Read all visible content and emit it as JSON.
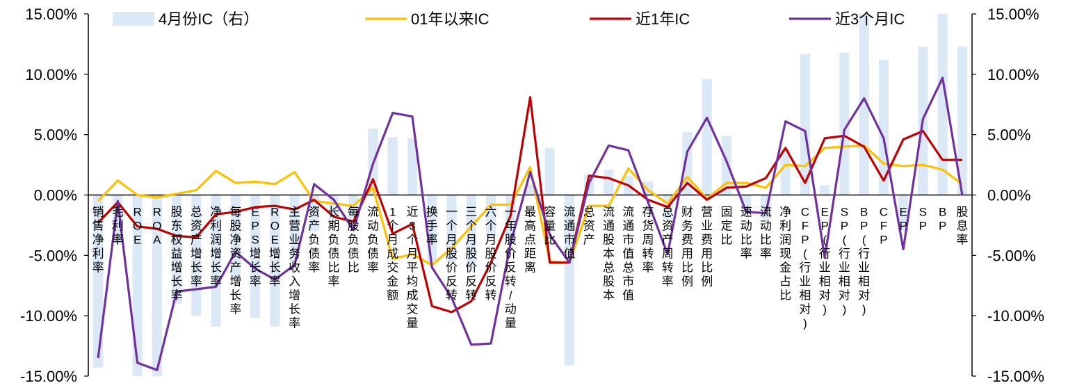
{
  "chart_data": {
    "type": "bar+line",
    "title": "",
    "xlabel": "",
    "ylabel_left": "",
    "ylabel_right": "",
    "ylim_left": [
      -15,
      15
    ],
    "ylim_right": [
      -15,
      15
    ],
    "y_ticks": [
      "15.00%",
      "10.00%",
      "5.00%",
      "0.00%",
      "-5.00%",
      "-10.00%",
      "-15.00%"
    ],
    "y_tick_values": [
      15,
      10,
      5,
      0,
      -5,
      -10,
      -15
    ],
    "legend": [
      {
        "name": "4月份IC（右）",
        "kind": "bar",
        "color": "#dbe8f5"
      },
      {
        "name": "01年以来IC",
        "kind": "line",
        "color": "#ffc000"
      },
      {
        "name": "近1年IC",
        "kind": "line",
        "color": "#c00000"
      },
      {
        "name": "近3个月IC",
        "kind": "line",
        "color": "#7030a0"
      }
    ],
    "legend_position": "top",
    "categories": [
      "销售净利率",
      "毛利率",
      "ROE",
      "ROA",
      "股东权益增长率",
      "总资产增长率",
      "净利润增长率",
      "每股净资产增长率",
      "EPS增长率",
      "ROE增长率",
      "主营业务收入增长率",
      "资产负债率",
      "长期负债比率",
      "每股负债比",
      "流动负债率",
      "1个月成交金额",
      "近3个月平均成交量",
      "换手率",
      "一个月股价反转",
      "三个月股价反转",
      "六个月股价反转",
      "一年股价反转/动量",
      "最高点距离",
      "容量比",
      "流通市值",
      "总资产",
      "流通股本总股本",
      "流通市值总市值",
      "存货周转率",
      "总资产周转率",
      "财务费用比例",
      "营业费用比例",
      "固定比",
      "速动比率",
      "流动比率",
      "净利润现金占比",
      "CFP(行业相对)",
      "EP(行业相对)",
      "SP(行业相对)",
      "BP(行业相对)",
      "CFP",
      "EP",
      "SP",
      "BP",
      "股息率"
    ],
    "series": [
      {
        "name": "4月份IC（右）",
        "kind": "bar",
        "color": "#dbe8f5",
        "axis": "right",
        "values": [
          -14.3,
          -4.0,
          -15.0,
          -15.0,
          -9.0,
          -10.0,
          -10.9,
          -7.0,
          -10.2,
          -10.9,
          -5.5,
          -3.0,
          -2.0,
          -2.0,
          5.5,
          4.8,
          4.7,
          -5.5,
          -5.5,
          -6.0,
          -3.5,
          -4.0,
          0.9,
          3.9,
          -14.1,
          1.7,
          2.1,
          1.6,
          1.1,
          -2.0,
          5.2,
          9.6,
          4.9,
          -1.5,
          -2.0,
          3.8,
          11.7,
          0.8,
          11.8,
          15.0,
          11.2,
          -3.0,
          12.3,
          15.0,
          12.3
        ]
      },
      {
        "name": "01年以来IC",
        "kind": "line",
        "color": "#ffc000",
        "axis": "left",
        "values": [
          -0.5,
          1.2,
          0.0,
          -0.2,
          0.1,
          0.4,
          2.0,
          1.0,
          1.1,
          0.9,
          1.9,
          -0.5,
          -0.7,
          -0.9,
          0.6,
          -5.3,
          -4.9,
          -5.8,
          -4.4,
          -2.6,
          -0.8,
          -0.8,
          2.3,
          -5.5,
          -5.6,
          -0.9,
          -0.9,
          2.2,
          0.4,
          -0.7,
          1.5,
          -0.3,
          1.0,
          1.0,
          0.6,
          2.5,
          2.4,
          3.9,
          4.0,
          4.1,
          2.6,
          2.4,
          2.5,
          2.1,
          0.9
        ]
      },
      {
        "name": "近1年IC",
        "kind": "line",
        "color": "#c00000",
        "axis": "left",
        "values": [
          -2.3,
          -0.6,
          -2.6,
          -2.8,
          -3.4,
          -3.5,
          -1.6,
          -1.4,
          -1.0,
          -0.9,
          -1.2,
          -0.4,
          -1.8,
          -2.2,
          1.3,
          -3.2,
          -2.4,
          -9.2,
          -9.7,
          -8.8,
          -5.6,
          -1.7,
          8.1,
          -5.6,
          -5.6,
          1.6,
          1.4,
          0.8,
          -0.4,
          -1.0,
          1.0,
          -0.4,
          0.6,
          0.7,
          1.4,
          3.9,
          1.0,
          4.7,
          4.9,
          4.0,
          1.2,
          4.6,
          5.3,
          2.9,
          2.9
        ]
      },
      {
        "name": "近3个月IC",
        "kind": "line",
        "color": "#7030a0",
        "axis": "left",
        "values": [
          -13.5,
          -0.5,
          -13.9,
          -14.5,
          -8.0,
          -7.8,
          -7.6,
          -4.7,
          -6.1,
          -7.0,
          -5.8,
          0.9,
          -0.4,
          -2.9,
          2.6,
          6.8,
          6.5,
          -6.0,
          -8.5,
          -12.4,
          -12.3,
          -4.0,
          1.9,
          -3.3,
          -5.6,
          1.0,
          4.1,
          3.7,
          -0.6,
          -4.9,
          3.6,
          6.4,
          2.8,
          -1.4,
          -1.5,
          6.1,
          5.3,
          -5.2,
          5.4,
          8.0,
          4.7,
          -4.5,
          6.3,
          9.7,
          0.0
        ]
      }
    ],
    "grid": false
  }
}
